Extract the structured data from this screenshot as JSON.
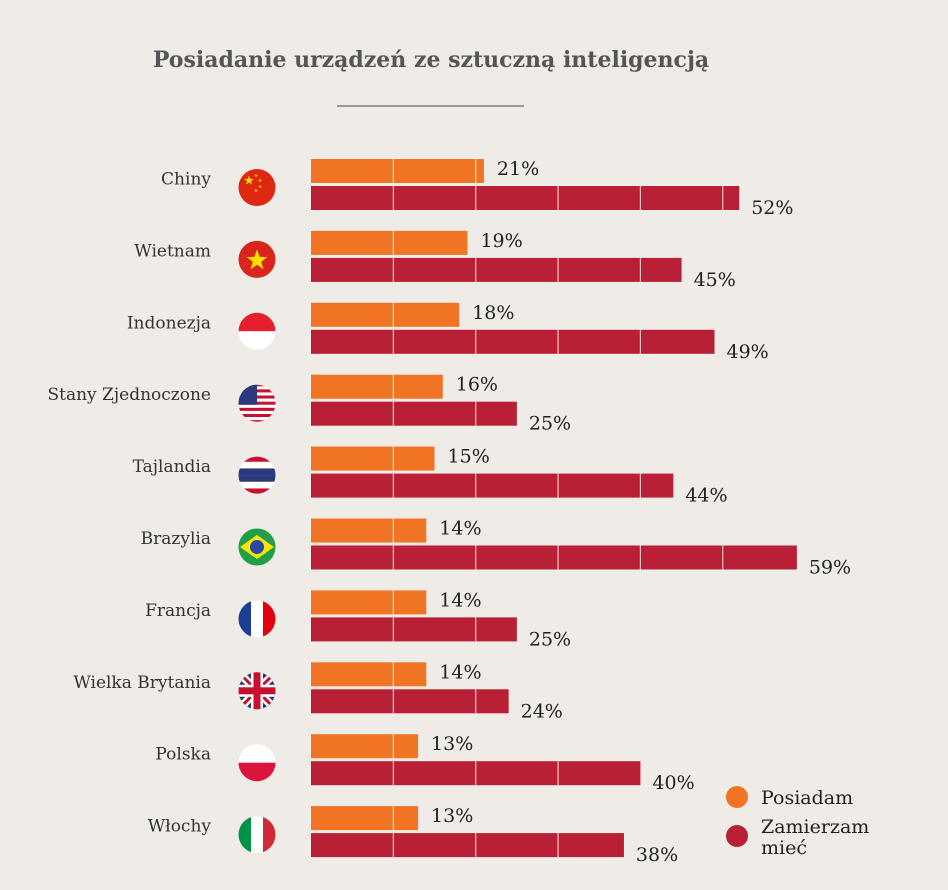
{
  "chart_data": {
    "type": "bar",
    "orientation": "horizontal",
    "title": "Posiadanie urządzeń ze sztuczną inteligencją",
    "categories": [
      "Chiny",
      "Wietnam",
      "Indonezja",
      "Stany Zjednoczone",
      "Tajlandia",
      "Brazylia",
      "Francja",
      "Wielka Brytania",
      "Polska",
      "Włochy"
    ],
    "flags": [
      "china-flag-icon",
      "vietnam-flag-icon",
      "indonesia-flag-icon",
      "usa-flag-icon",
      "thailand-flag-icon",
      "brazil-flag-icon",
      "france-flag-icon",
      "uk-flag-icon",
      "poland-flag-icon",
      "italy-flag-icon"
    ],
    "series": [
      {
        "name": "Posiadam",
        "color": "#f07424",
        "values": [
          21,
          19,
          18,
          16,
          15,
          14,
          14,
          14,
          13,
          13
        ],
        "labels": [
          "21%",
          "19%",
          "18%",
          "16%",
          "15%",
          "14%",
          "14%",
          "14%",
          "13%",
          "13%"
        ]
      },
      {
        "name": "Zamierzam mieć",
        "color": "#b91f35",
        "values": [
          52,
          45,
          49,
          25,
          44,
          59,
          25,
          24,
          40,
          38
        ],
        "labels": [
          "52%",
          "45%",
          "49%",
          "25%",
          "44%",
          "59%",
          "25%",
          "24%",
          "40%",
          "38%"
        ]
      }
    ],
    "legend_lines": [
      [
        "Posiadam"
      ],
      [
        "Zamierzam",
        "mieć"
      ]
    ],
    "xlim": [
      0,
      60
    ],
    "grid": true,
    "legend_position": "bottom-right"
  }
}
